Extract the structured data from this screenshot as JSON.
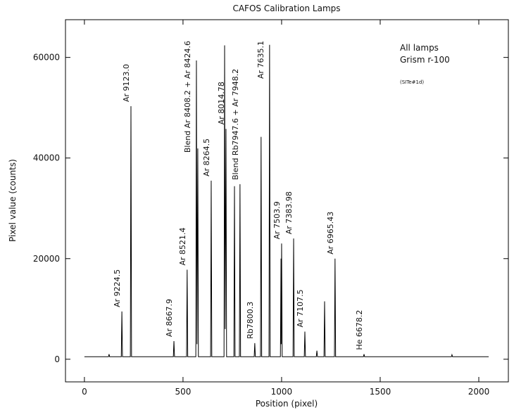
{
  "chart_data": {
    "type": "line",
    "title": "CAFOS  Calibration Lamps",
    "x_label": "Position  (pixel)",
    "y_label": "Pixel value  (counts)",
    "notes": [
      "All lamps",
      "Grism r-100",
      "(SITe#1d)"
    ],
    "xlim": [
      -96,
      2150
    ],
    "ylim": [
      -4500,
      67500
    ],
    "xticks": [
      0,
      500,
      1000,
      1500,
      2000
    ],
    "yticks": [
      0,
      20000,
      40000,
      60000
    ],
    "series": [
      {
        "color": "#000000",
        "x": [
          0,
          122,
          125,
          128,
          187,
          190,
          193,
          233,
          236,
          239,
          451,
          454,
          457,
          518,
          521,
          524,
          565,
          568,
          571,
          575,
          578,
          640,
          643,
          646,
          708,
          711,
          714,
          718,
          721,
          758,
          761,
          764,
          786,
          789,
          792,
          861,
          864,
          867,
          893,
          896,
          899,
          936,
          939,
          942,
          994,
          997,
          998,
          1000,
          1003,
          1058,
          1061,
          1064,
          1115,
          1118,
          1121,
          1176,
          1179,
          1182,
          1215,
          1218,
          1221,
          1268,
          1271,
          1274,
          1415,
          1418,
          1421,
          1861,
          1864,
          1867,
          2050
        ],
        "values": [
          500,
          500,
          1000,
          500,
          500,
          9500,
          500,
          500,
          50300,
          500,
          500,
          3600,
          500,
          500,
          17800,
          500,
          500,
          59400,
          3000,
          41900,
          500,
          500,
          35500,
          500,
          500,
          62400,
          6000,
          45800,
          500,
          500,
          34400,
          500,
          500,
          34800,
          500,
          500,
          3200,
          500,
          500,
          44200,
          500,
          500,
          62500,
          500,
          500,
          20000,
          3000,
          23000,
          500,
          500,
          24000,
          500,
          500,
          5500,
          500,
          500,
          1700,
          500,
          500,
          11500,
          500,
          500,
          20000,
          500,
          500,
          1000,
          500,
          500,
          900,
          500,
          500
        ]
      }
    ],
    "annotations": [
      {
        "text": "Ar 9224.5",
        "x": 190
      },
      {
        "text": "Ar 9123.0",
        "x": 236
      },
      {
        "text": "Ar 8667.9",
        "x": 454
      },
      {
        "text": "Ar 8521.4",
        "x": 521
      },
      {
        "text": "Blend  Ar 8408.2 + Ar 8424.6",
        "x": 568
      },
      {
        "text": "Ar 8264.5",
        "x": 643
      },
      {
        "text": "Ar 8014.78",
        "x": 718
      },
      {
        "text": "Blend Rb7947.6 + Ar 7948.2",
        "x": 789
      },
      {
        "text": "Rb7800.3",
        "x": 864
      },
      {
        "text": "Ar 7635.1",
        "x": 939
      },
      {
        "text": "Ar 7503.9",
        "x": 1000
      },
      {
        "text": "Ar 7383.98",
        "x": 1061
      },
      {
        "text": "Ar 7107.5",
        "x": 1118
      },
      {
        "text": "Ar 6965.43",
        "x": 1271
      },
      {
        "text": "He 6678.2",
        "x": 1418
      }
    ]
  }
}
